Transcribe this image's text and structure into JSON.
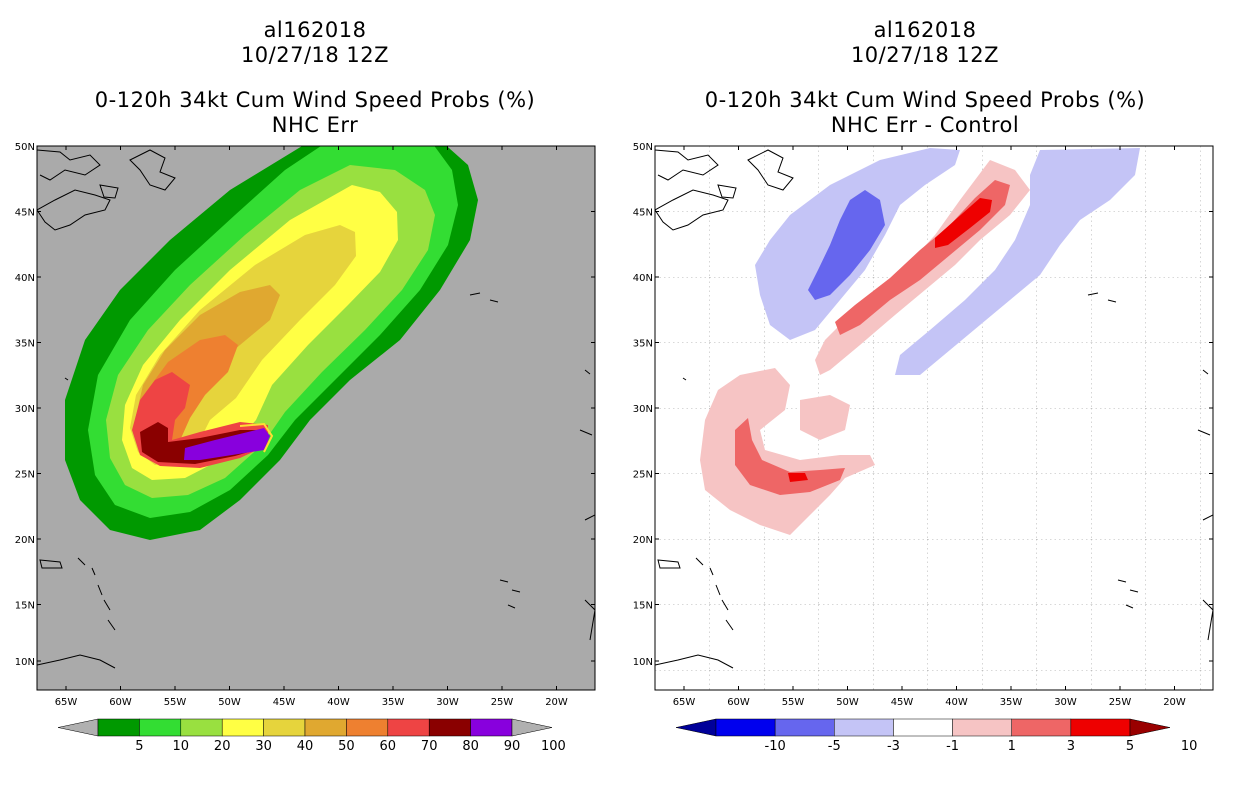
{
  "left_panel": {
    "storm_id": "al162018",
    "date": "10/27/18 12Z",
    "product": "0-120h 34kt Cum Wind Speed Probs (%)",
    "subtitle": "NHC Err",
    "colorbar": {
      "colors": [
        "#b0b0b0",
        "#009900",
        "#33dd33",
        "#99e040",
        "#ffff44",
        "#e6d43c",
        "#e0a830",
        "#ee8030",
        "#ee4444",
        "#8a0000",
        "#8800dd",
        "#b0b0b0"
      ],
      "labels": [
        "5",
        "10",
        "20",
        "30",
        "40",
        "50",
        "60",
        "70",
        "80",
        "90",
        "100"
      ]
    }
  },
  "right_panel": {
    "storm_id": "al162018",
    "date": "10/27/18 12Z",
    "product": "0-120h 34kt Cum Wind Speed Probs (%)",
    "subtitle": "NHC Err - Control",
    "colorbar": {
      "colors": [
        "#000099",
        "#0000ee",
        "#6666ee",
        "#c4c4f6",
        "#ffffff",
        "#f6c4c4",
        "#ee6666",
        "#ee0000",
        "#990000"
      ],
      "labels": [
        "-10",
        "-5",
        "-3",
        "-1",
        "1",
        "3",
        "5",
        "10"
      ]
    }
  },
  "axes": {
    "lon_labels": [
      "65W",
      "60W",
      "55W",
      "50W",
      "45W",
      "40W",
      "35W",
      "30W",
      "25W",
      "20W"
    ],
    "lat_labels": [
      "50N",
      "45N",
      "40N",
      "35N",
      "30N",
      "25N",
      "20N",
      "15N",
      "10N"
    ]
  }
}
